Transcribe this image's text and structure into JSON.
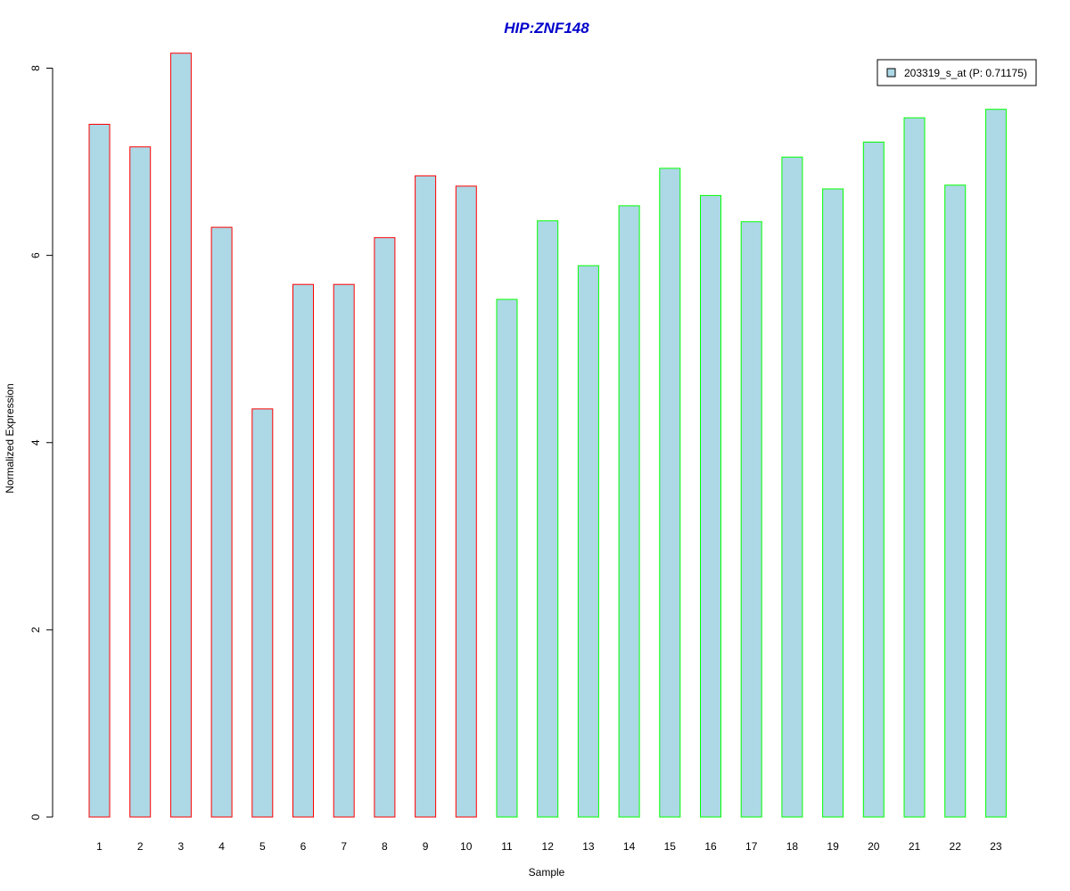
{
  "chart_data": {
    "type": "bar",
    "title": "HIP:ZNF148",
    "xlabel": "Sample",
    "ylabel": "Normalized Expression",
    "categories": [
      "1",
      "2",
      "3",
      "4",
      "5",
      "6",
      "7",
      "8",
      "9",
      "10",
      "11",
      "12",
      "13",
      "14",
      "15",
      "16",
      "17",
      "18",
      "19",
      "20",
      "21",
      "22",
      "23"
    ],
    "series": [
      {
        "name": "203319_s_at (P: 0.71175)",
        "values": [
          7.4,
          7.16,
          8.16,
          6.3,
          4.36,
          5.69,
          5.69,
          6.19,
          6.85,
          6.74,
          5.53,
          6.37,
          5.89,
          6.53,
          6.93,
          6.64,
          6.36,
          7.05,
          6.71,
          7.21,
          7.47,
          6.75,
          7.56
        ]
      }
    ],
    "groups": [
      {
        "samples": [
          1,
          10
        ],
        "border_color": "#ff0000"
      },
      {
        "samples": [
          11,
          23
        ],
        "border_color": "#00ff00"
      }
    ],
    "ylim": [
      0,
      8
    ],
    "yticks": [
      0,
      2,
      4,
      6,
      8
    ],
    "grid": false,
    "legend_position": "top-right",
    "colors": {
      "bar_fill": "#add8e6",
      "title": "#0000cc",
      "axis": "#000000"
    }
  }
}
